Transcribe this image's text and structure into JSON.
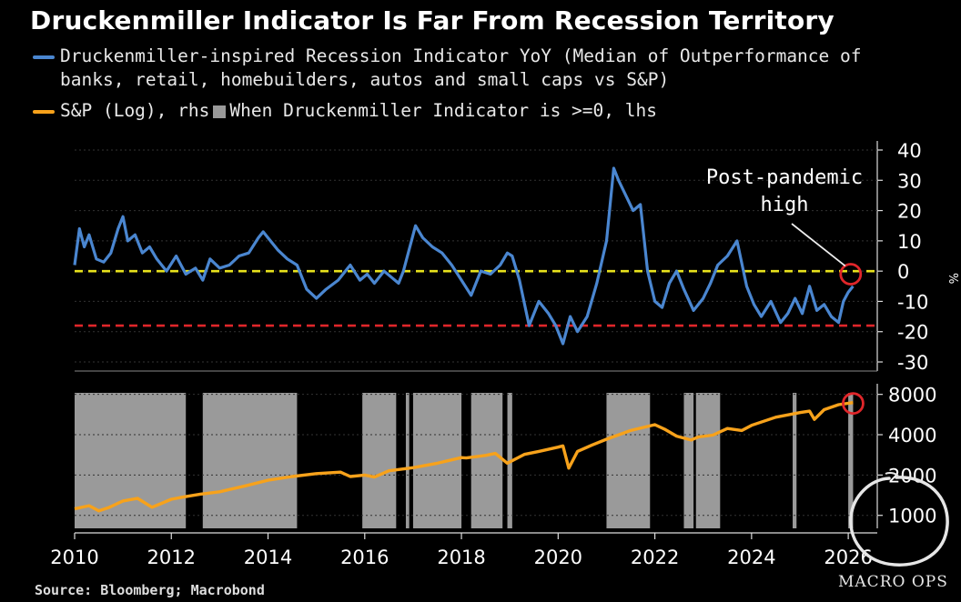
{
  "title": "Druckenmiller Indicator Is Far From Recession Territory",
  "legend": {
    "line1": "Druckenmiller-inspired Recession Indicator YoY (Median of Outperformance of",
    "line2": "banks, retail, homebuilders, autos and small caps vs S&P)",
    "sp_label": "S&P (Log), rhs",
    "box_label": "When Druckenmiller Indicator is >=0, lhs"
  },
  "source": "Source: Bloomberg; Macrobond",
  "watermark": "MACRO OPS",
  "colors": {
    "indicator": "#4a86d0",
    "sp": "#f7a21b",
    "zero_line": "#e8e21c",
    "threshold_line": "#e0262a",
    "shading": "#9a9a9a",
    "circle": "#e0262a"
  },
  "chart_data": [
    {
      "type": "line",
      "name": "Druckenmiller-inspired Recession Indicator YoY",
      "ylim": [
        -33,
        43
      ],
      "yticks": [
        "40",
        "30",
        "20",
        "10",
        "0",
        "-10",
        "-20",
        "-30"
      ],
      "yunit": "%",
      "xlim": [
        2010,
        2026.6
      ],
      "reference_lines": [
        0,
        -18
      ],
      "annotation": {
        "text_line1": "Post-pandemic",
        "text_line2": "high",
        "x": 2026.05,
        "y": -1
      },
      "x": [
        2010.0,
        2010.1,
        2010.2,
        2010.3,
        2010.45,
        2010.6,
        2010.75,
        2010.9,
        2011.0,
        2011.1,
        2011.25,
        2011.4,
        2011.55,
        2011.7,
        2011.9,
        2012.1,
        2012.3,
        2012.5,
        2012.65,
        2012.8,
        2013.0,
        2013.2,
        2013.4,
        2013.6,
        2013.8,
        2013.9,
        2014.0,
        2014.2,
        2014.4,
        2014.6,
        2014.8,
        2015.0,
        2015.2,
        2015.45,
        2015.7,
        2015.9,
        2016.05,
        2016.2,
        2016.4,
        2016.55,
        2016.7,
        2016.8,
        2016.9,
        2017.05,
        2017.2,
        2017.4,
        2017.6,
        2017.8,
        2018.0,
        2018.2,
        2018.4,
        2018.6,
        2018.8,
        2018.95,
        2019.05,
        2019.2,
        2019.4,
        2019.6,
        2019.8,
        2019.95,
        2020.1,
        2020.25,
        2020.4,
        2020.6,
        2020.8,
        2021.0,
        2021.15,
        2021.25,
        2021.4,
        2021.55,
        2021.7,
        2021.85,
        2022.0,
        2022.15,
        2022.3,
        2022.45,
        2022.6,
        2022.8,
        2023.0,
        2023.15,
        2023.3,
        2023.5,
        2023.7,
        2023.9,
        2024.05,
        2024.2,
        2024.4,
        2024.6,
        2024.75,
        2024.9,
        2025.05,
        2025.2,
        2025.35,
        2025.5,
        2025.65,
        2025.8,
        2025.9,
        2026.0,
        2026.1
      ],
      "y": [
        2,
        14,
        8,
        12,
        4,
        3,
        6,
        14,
        18,
        10,
        12,
        6,
        8,
        4,
        0,
        5,
        -1,
        1,
        -3,
        4,
        1,
        2,
        5,
        6,
        11,
        13,
        11,
        7,
        4,
        2,
        -6,
        -9,
        -6,
        -3,
        2,
        -3,
        -1,
        -4,
        0,
        -2,
        -4,
        0,
        6,
        15,
        11,
        8,
        6,
        2,
        -3,
        -8,
        0,
        -1,
        2,
        6,
        5,
        -3,
        -18,
        -10,
        -14,
        -18,
        -24,
        -15,
        -20,
        -15,
        -4,
        10,
        34,
        30,
        25,
        20,
        22,
        0,
        -10,
        -12,
        -4,
        0,
        -6,
        -13,
        -9,
        -4,
        2,
        5,
        10,
        -5,
        -11,
        -15,
        -10,
        -17,
        -14,
        -9,
        -14,
        -5,
        -13,
        -11,
        -15,
        -17,
        -10,
        -7,
        -5
      ]
    },
    {
      "type": "line",
      "name": "S&P (Log), rhs",
      "yscale": "log",
      "ylim": [
        800,
        9600
      ],
      "yticks": [
        "8000",
        "4000",
        "2000",
        "1000"
      ],
      "xlim": [
        2010,
        2026.6
      ],
      "xticks": [
        "2010",
        "2012",
        "2014",
        "2016",
        "2018",
        "2020",
        "2022",
        "2024",
        "2026"
      ],
      "x": [
        2010.0,
        2010.3,
        2010.5,
        2010.7,
        2011.0,
        2011.3,
        2011.6,
        2011.8,
        2012.0,
        2012.3,
        2012.6,
        2013.0,
        2013.5,
        2014.0,
        2014.5,
        2015.0,
        2015.5,
        2015.7,
        2016.0,
        2016.2,
        2016.5,
        2017.0,
        2017.5,
        2018.0,
        2018.1,
        2018.5,
        2018.7,
        2018.95,
        2019.3,
        2019.6,
        2020.0,
        2020.1,
        2020.22,
        2020.4,
        2020.7,
        2021.0,
        2021.5,
        2022.0,
        2022.2,
        2022.45,
        2022.75,
        2022.9,
        2023.2,
        2023.5,
        2023.8,
        2024.0,
        2024.5,
        2025.0,
        2025.2,
        2025.3,
        2025.5,
        2025.8,
        2026.1
      ],
      "y": [
        1120,
        1180,
        1080,
        1140,
        1280,
        1340,
        1150,
        1230,
        1320,
        1380,
        1440,
        1500,
        1650,
        1830,
        1950,
        2050,
        2100,
        1950,
        2000,
        1930,
        2150,
        2270,
        2450,
        2700,
        2680,
        2800,
        2900,
        2450,
        2850,
        3000,
        3230,
        3300,
        2250,
        3000,
        3350,
        3700,
        4300,
        4750,
        4400,
        3900,
        3650,
        3850,
        3970,
        4450,
        4300,
        4700,
        5400,
        5850,
        6000,
        5200,
        6150,
        6700,
        6950
      ]
    },
    {
      "type": "area",
      "name": "When Druckenmiller Indicator is >=0, lhs",
      "periods": [
        [
          2010.0,
          2012.3
        ],
        [
          2012.65,
          2014.6
        ],
        [
          2015.95,
          2016.65
        ],
        [
          2016.85,
          2016.92
        ],
        [
          2017.0,
          2018.0
        ],
        [
          2018.2,
          2018.85
        ],
        [
          2018.95,
          2019.05
        ],
        [
          2021.0,
          2021.9
        ],
        [
          2022.6,
          2022.8
        ],
        [
          2022.85,
          2023.35
        ],
        [
          2024.85,
          2024.93
        ],
        [
          2026.0,
          2026.1
        ]
      ]
    }
  ]
}
